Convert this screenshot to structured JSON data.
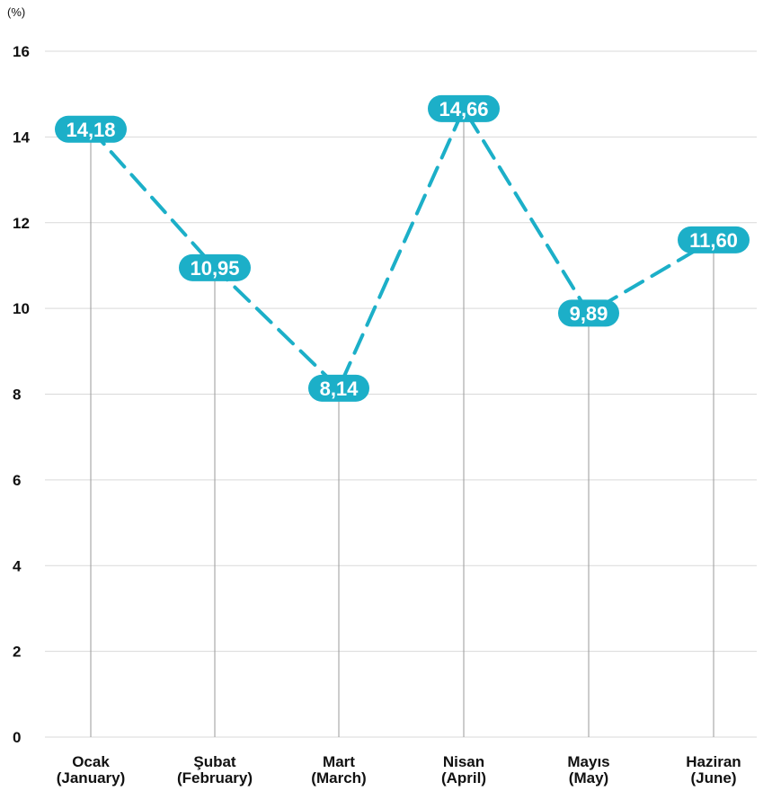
{
  "chart_data": {
    "type": "line",
    "unit_label": "(%)",
    "categories": [
      [
        "Ocak",
        "(January)"
      ],
      [
        "Şubat",
        "(February)"
      ],
      [
        "Mart",
        "(March)"
      ],
      [
        "Nisan",
        "(April)"
      ],
      [
        "Mayıs",
        "(May)"
      ],
      [
        "Haziran",
        "(June)"
      ]
    ],
    "values": [
      14.18,
      10.95,
      8.14,
      14.66,
      9.89,
      11.6
    ],
    "data_labels": [
      "14,18",
      "10,95",
      "8,14",
      "14,66",
      "9,89",
      "11,60"
    ],
    "y_ticks": [
      "0",
      "2",
      "4",
      "6",
      "8",
      "10",
      "12",
      "14",
      "16"
    ],
    "ylim": [
      0,
      16
    ],
    "grid": true,
    "line_style": "dashed",
    "colors": {
      "series": "#1cafc8",
      "grid": "#d9d9d9",
      "stem": "#9a9a9a",
      "label_text": "#ffffff",
      "axis_text": "#111111"
    }
  }
}
